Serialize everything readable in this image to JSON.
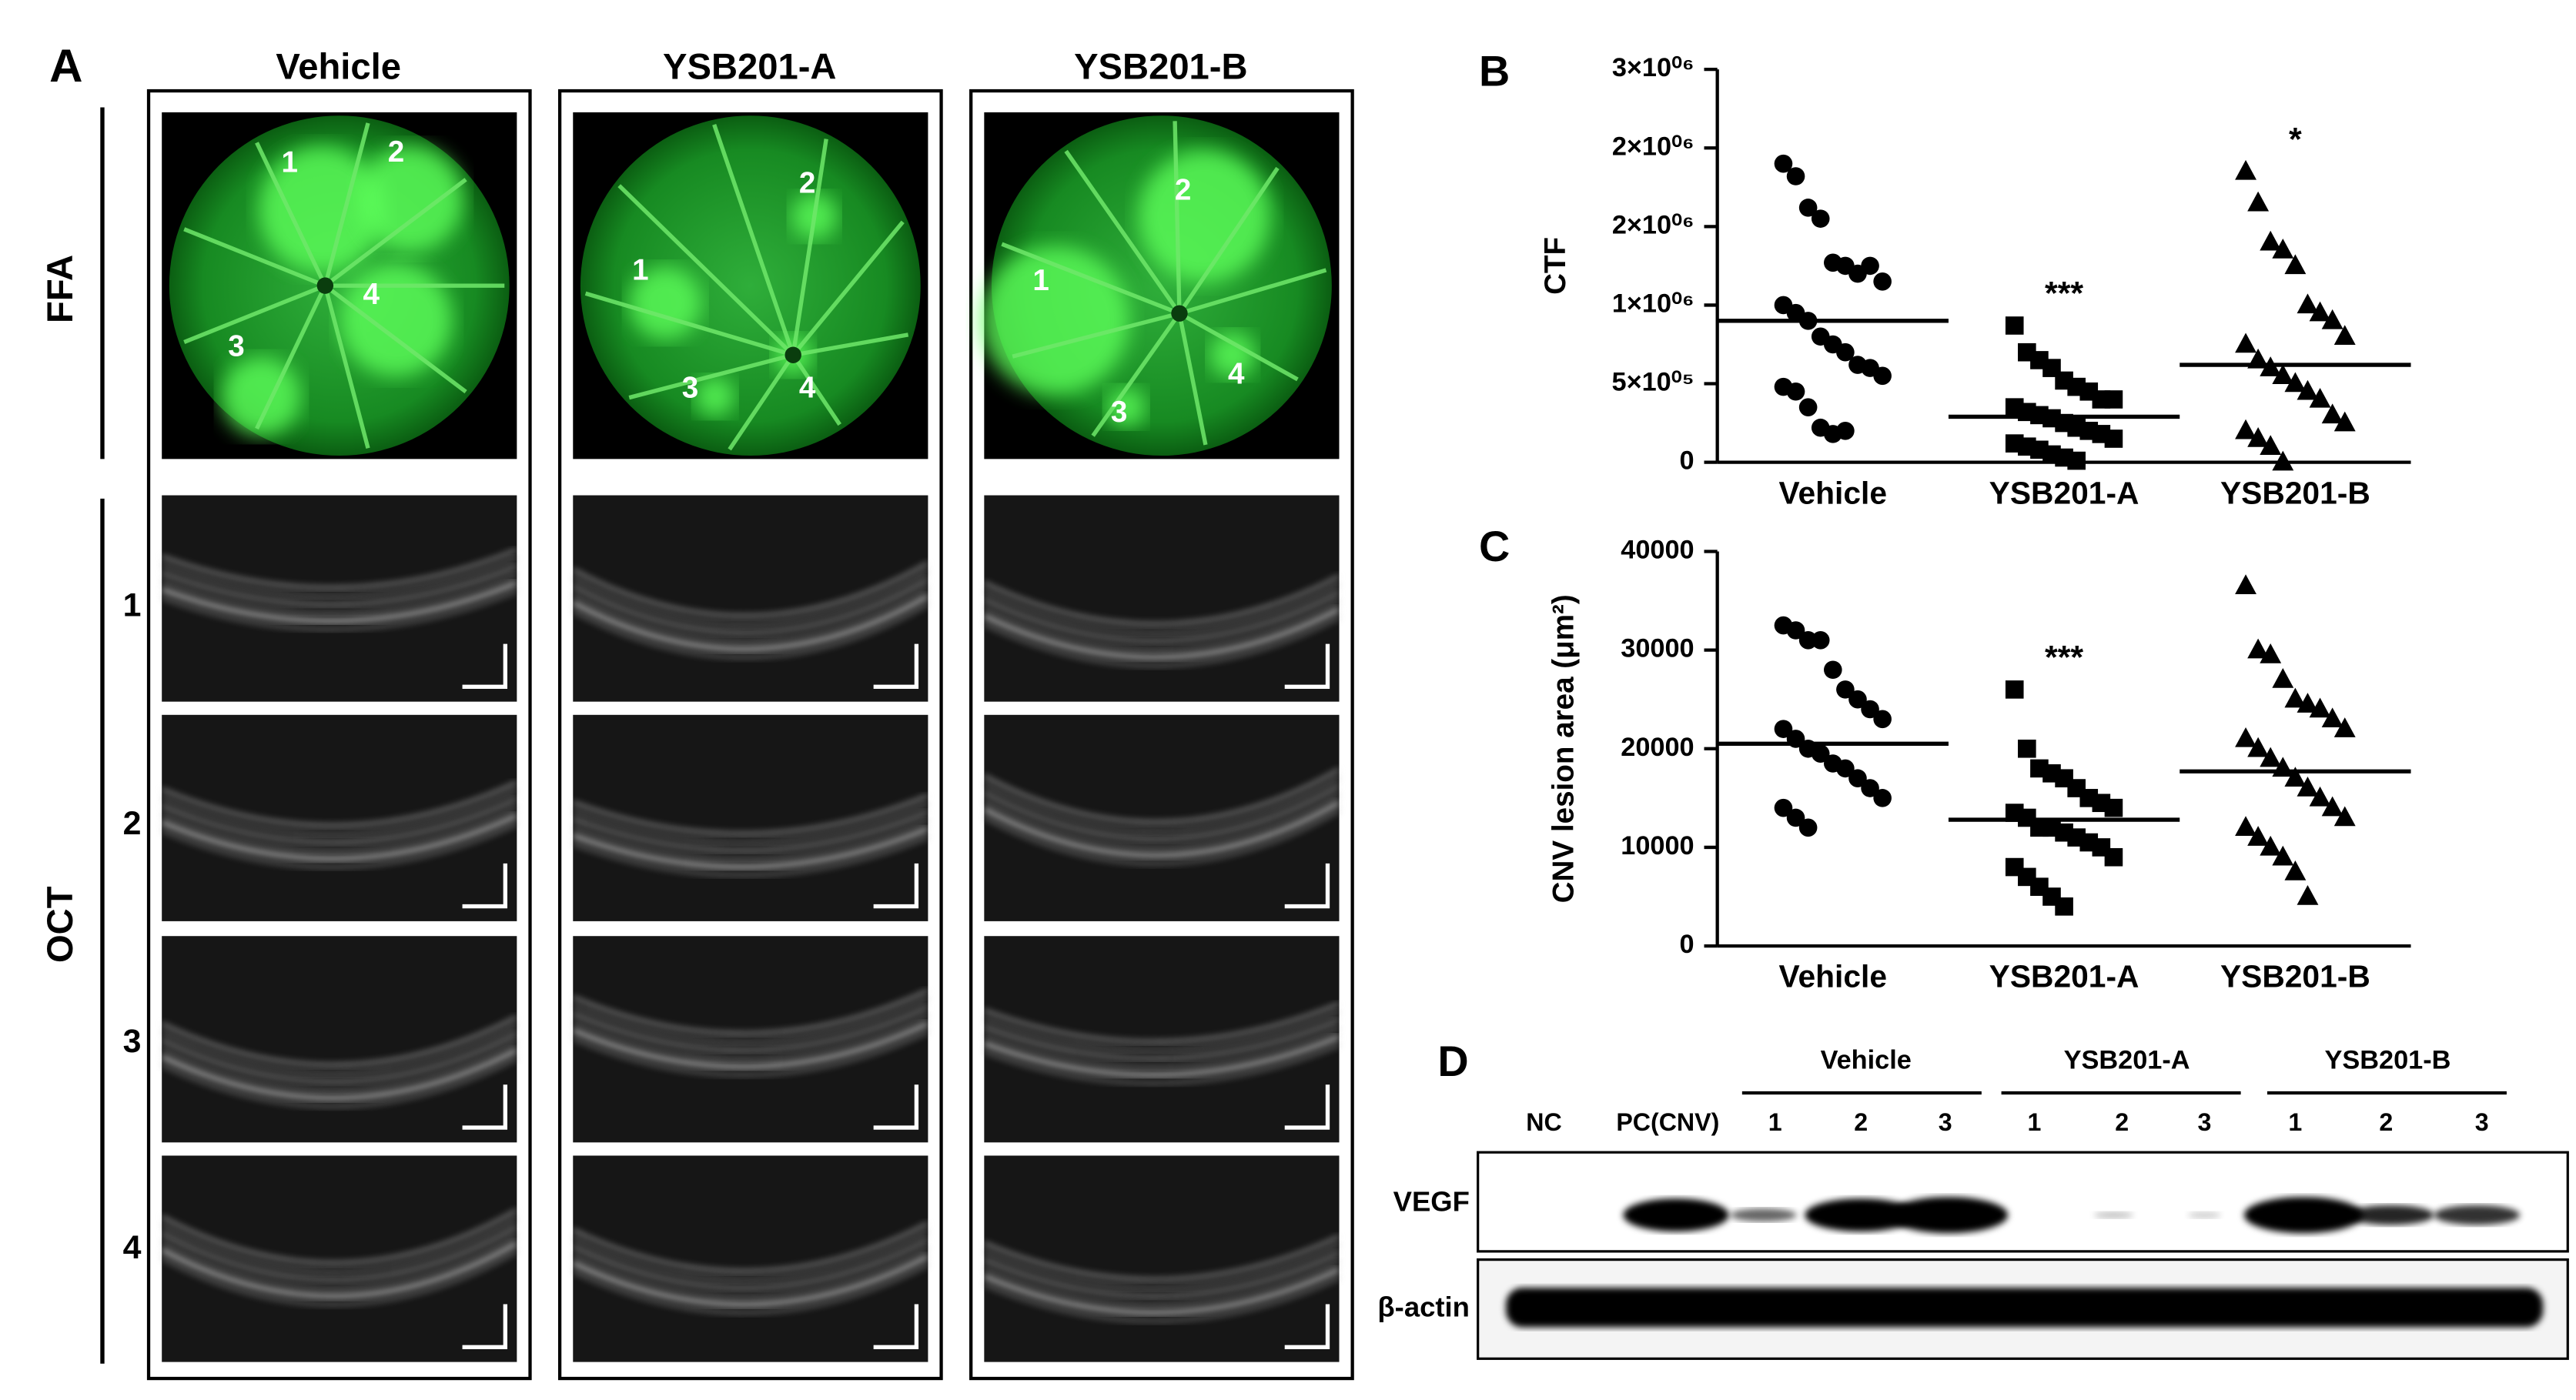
{
  "figure_panels": {
    "A": {
      "label": "A",
      "columns": [
        "Vehicle",
        "YSB201-A",
        "YSB201-B"
      ],
      "section_labels": [
        "FFA",
        "OCT"
      ],
      "oct_rows": [
        "1",
        "2",
        "3",
        "4"
      ],
      "ffa_spots": [
        [
          "1",
          "2",
          "4",
          "3"
        ],
        [
          "2",
          "1",
          "3",
          "4"
        ],
        [
          "2",
          "1",
          "3",
          "4"
        ]
      ]
    },
    "D": {
      "label": "D",
      "groups": [
        "Vehicle",
        "YSB201-A",
        "YSB201-B"
      ],
      "lanes": [
        "NC",
        "PC(CNV)",
        "1",
        "2",
        "3",
        "1",
        "2",
        "3",
        "1",
        "2",
        "3"
      ],
      "blots": [
        "VEGF",
        "β-actin"
      ]
    }
  },
  "chart_data": [
    {
      "type": "scatter",
      "panel_label": "B",
      "y_label": "CTF",
      "categories": [
        "Vehicle",
        "YSB201-A",
        "YSB201-B"
      ],
      "ylim": [
        0,
        2500000
      ],
      "yticks": [
        0,
        {
          "value": 500000,
          "label": "5×10⁰⁵"
        },
        {
          "value": 1000000,
          "label": "1×10⁰⁶"
        },
        {
          "value": 1500000,
          "label": "2×10⁰⁶"
        },
        {
          "value": 2000000,
          "label": "2×10⁰⁶"
        },
        {
          "value": 2500000,
          "label": "3×10⁰⁶"
        }
      ],
      "series": [
        {
          "marker": "circle",
          "color": "#000000",
          "values": [
            1900000,
            1820000,
            1620000,
            1550000,
            1270000,
            1250000,
            1200000,
            1250000,
            1150000,
            1000000,
            950000,
            900000,
            800000,
            750000,
            700000,
            620000,
            600000,
            550000,
            480000,
            450000,
            350000,
            220000,
            180000,
            200000
          ]
        },
        {
          "marker": "square",
          "color": "#000000",
          "values": [
            870000,
            700000,
            650000,
            600000,
            520000,
            480000,
            450000,
            400000,
            400000,
            350000,
            320000,
            300000,
            280000,
            250000,
            220000,
            200000,
            180000,
            150000,
            120000,
            100000,
            80000,
            50000,
            30000,
            10000
          ]
        },
        {
          "marker": "triangle",
          "color": "#000000",
          "values": [
            1850000,
            1650000,
            1400000,
            1350000,
            1250000,
            1000000,
            950000,
            900000,
            800000,
            750000,
            650000,
            600000,
            550000,
            500000,
            450000,
            400000,
            300000,
            250000,
            200000,
            150000,
            100000,
            0
          ]
        }
      ],
      "means": [
        900000,
        290000,
        620000
      ],
      "annotations": [
        null,
        "***",
        "*"
      ]
    },
    {
      "type": "scatter",
      "panel_label": "C",
      "y_label": "CNV lesion area (μm²)",
      "categories": [
        "Vehicle",
        "YSB201-A",
        "YSB201-B"
      ],
      "ylim": [
        0,
        40000
      ],
      "yticks": [
        0,
        10000,
        20000,
        30000,
        40000
      ],
      "series": [
        {
          "marker": "circle",
          "color": "#000000",
          "values": [
            32500,
            32000,
            31000,
            31000,
            28000,
            26000,
            25000,
            24000,
            23000,
            22000,
            21000,
            20000,
            19500,
            18500,
            18000,
            17000,
            16000,
            15000,
            14000,
            13000,
            12000
          ]
        },
        {
          "marker": "square",
          "color": "#000000",
          "values": [
            26000,
            20000,
            18000,
            17500,
            17000,
            16000,
            15000,
            14500,
            14000,
            13500,
            13000,
            12000,
            12000,
            11500,
            11000,
            10500,
            10000,
            9000,
            8000,
            7000,
            6000,
            5000,
            4000
          ]
        },
        {
          "marker": "triangle",
          "color": "#000000",
          "values": [
            36500,
            30000,
            29500,
            27000,
            25000,
            24500,
            24000,
            23000,
            22000,
            21000,
            20000,
            19000,
            18000,
            17000,
            16000,
            15000,
            14000,
            13000,
            12000,
            11000,
            10000,
            9000,
            7500,
            5000
          ]
        }
      ],
      "means": [
        20500,
        12800,
        17700
      ],
      "annotations": [
        null,
        "***",
        null
      ]
    }
  ]
}
